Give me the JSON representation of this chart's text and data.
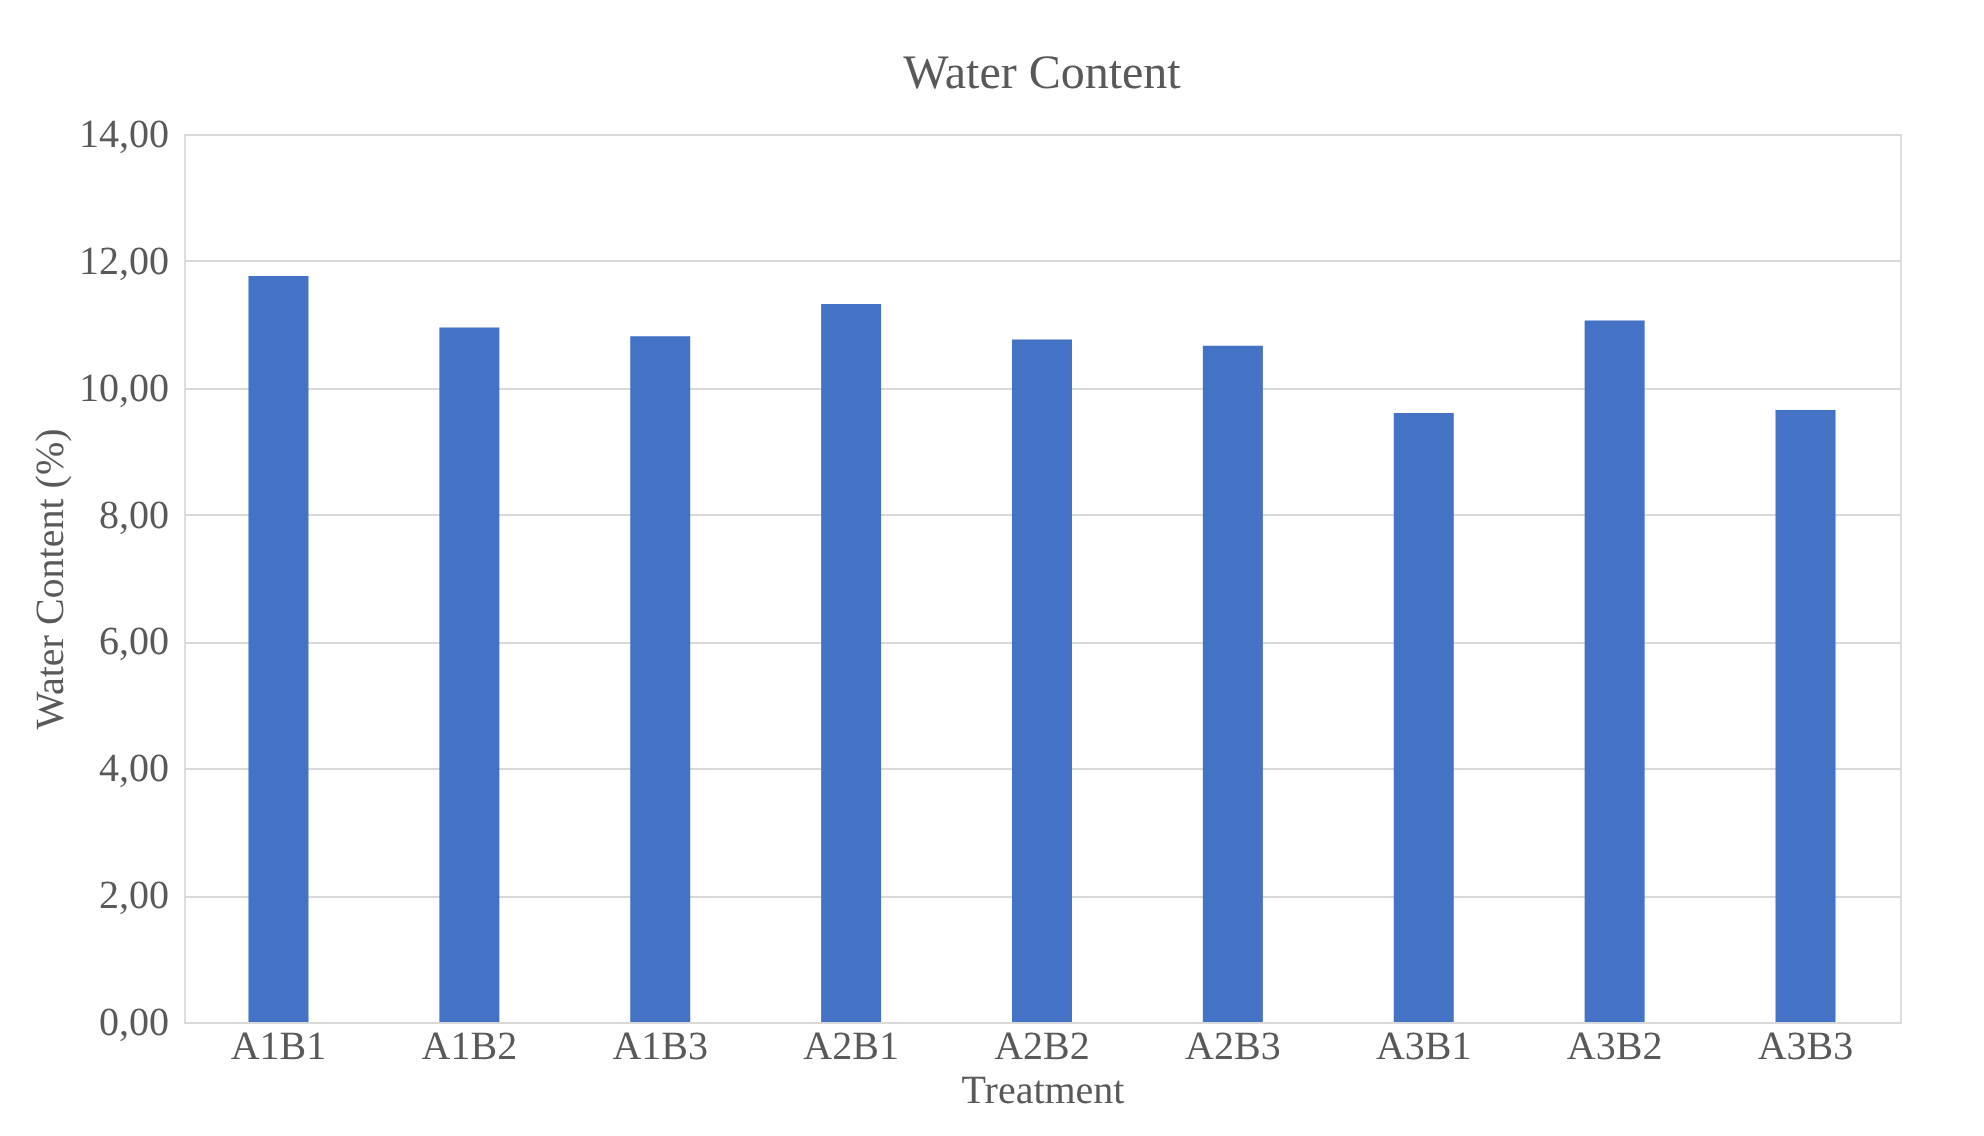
{
  "chart_data": {
    "type": "bar",
    "title": "Water Content",
    "xlabel": "Treatment",
    "ylabel": "Water Content (%)",
    "categories": [
      "A1B1",
      "A1B2",
      "A1B3",
      "A2B1",
      "A2B2",
      "A2B3",
      "A3B1",
      "A3B2",
      "A3B3"
    ],
    "values": [
      11.76,
      10.95,
      10.81,
      11.32,
      10.76,
      10.66,
      9.6,
      11.06,
      9.65
    ],
    "color": "#4472c4",
    "ylim": [
      0,
      14
    ],
    "yticks": [
      {
        "value": 0,
        "label": "0,00"
      },
      {
        "value": 2,
        "label": "2,00"
      },
      {
        "value": 4,
        "label": "4,00"
      },
      {
        "value": 6,
        "label": "6,00"
      },
      {
        "value": 8,
        "label": "8,00"
      },
      {
        "value": 10,
        "label": "10,00"
      },
      {
        "value": 12,
        "label": "12,00"
      },
      {
        "value": 14,
        "label": "14,00"
      }
    ],
    "grid": "y"
  }
}
